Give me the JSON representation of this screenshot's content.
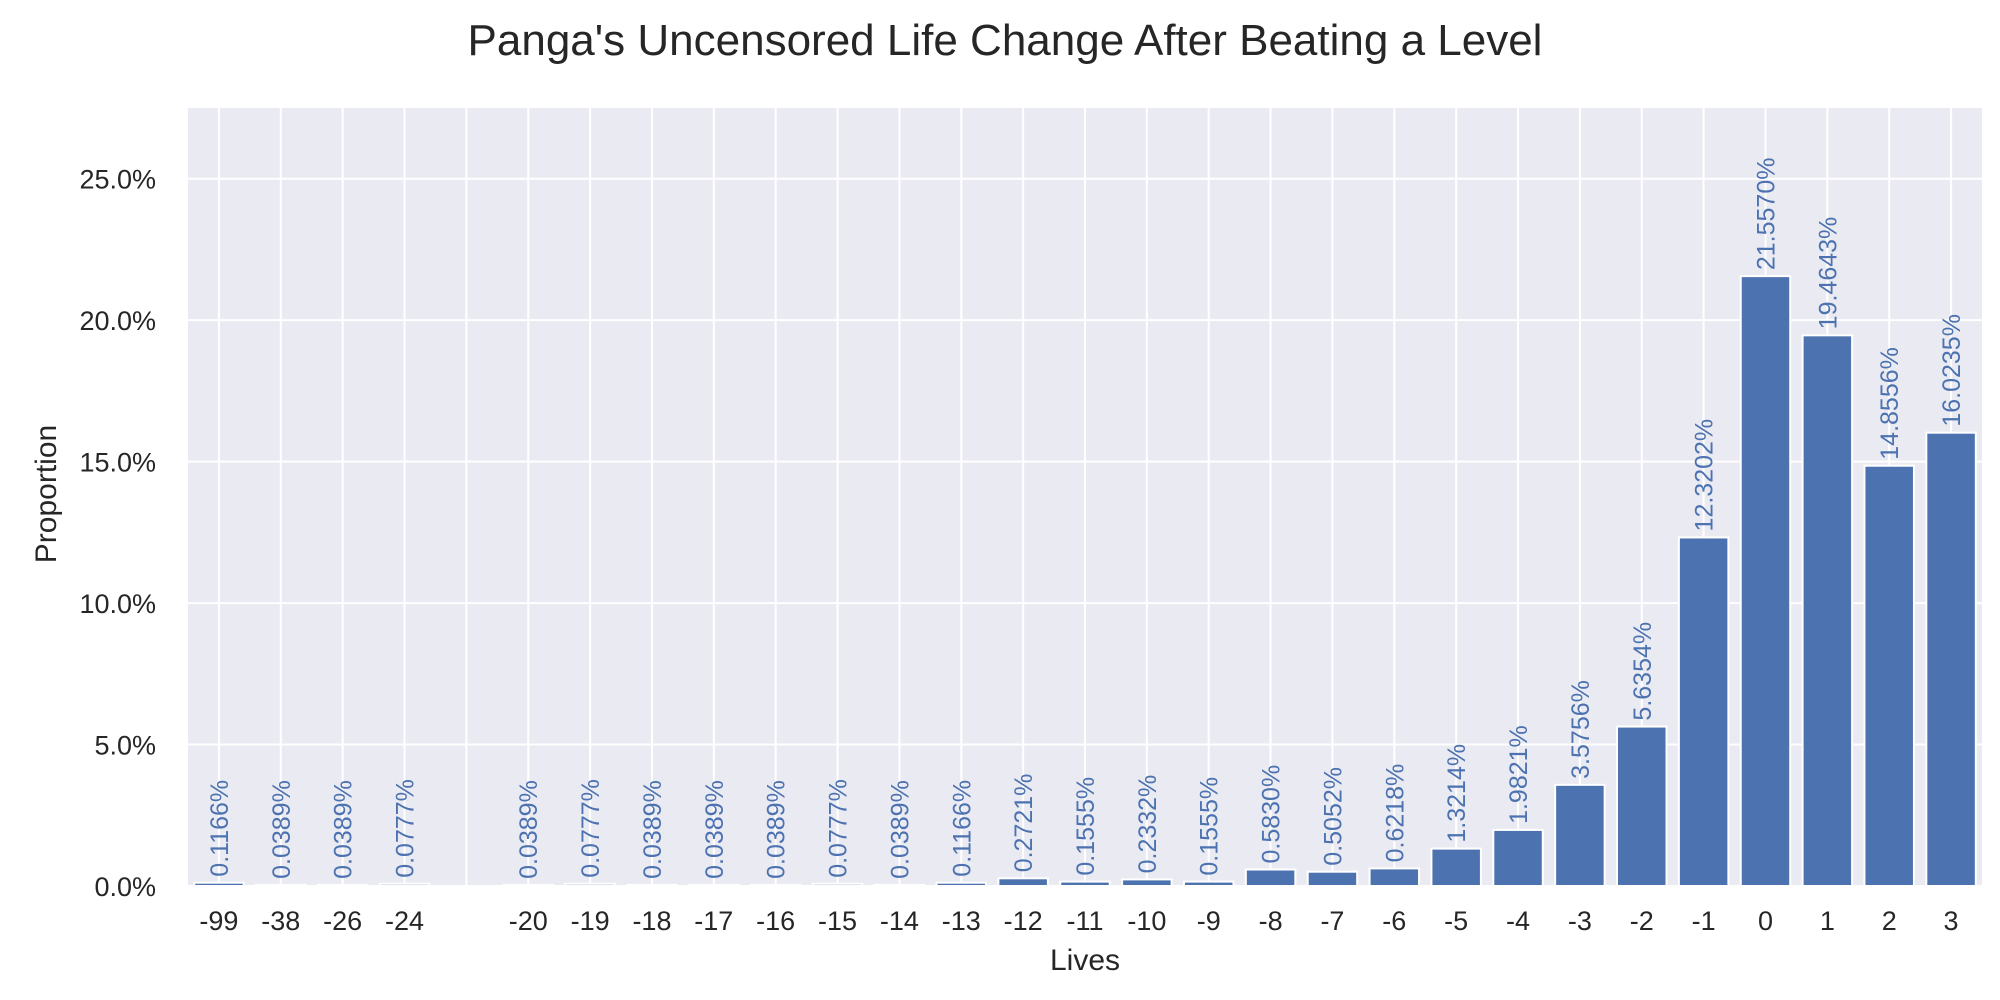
{
  "chart_data": {
    "type": "bar",
    "title": "Panga's Uncensored Life Change After Beating a Level",
    "xlabel": "Lives",
    "ylabel": "Proportion",
    "ylim": [
      0,
      27.5
    ],
    "yticks": [
      0,
      5,
      10,
      15,
      20,
      25
    ],
    "ytick_labels": [
      "0.0%",
      "5.0%",
      "10.0%",
      "15.0%",
      "20.0%",
      "25.0%"
    ],
    "grid": true,
    "colors": {
      "bar": "#4c72b0",
      "background": "#eaeaf2",
      "grid": "#ffffff",
      "text": "#262626"
    },
    "categories": [
      "-99",
      "-38",
      "-26",
      "-24",
      "",
      "-20",
      "-19",
      "-18",
      "-17",
      "-16",
      "-15",
      "-14",
      "-13",
      "-12",
      "-11",
      "-10",
      "-9",
      "-8",
      "-7",
      "-6",
      "-5",
      "-4",
      "-3",
      "-2",
      "-1",
      "0",
      "1",
      "2",
      "3"
    ],
    "values": [
      0.1166,
      0.0389,
      0.0389,
      0.0777,
      null,
      0.0389,
      0.0777,
      0.0389,
      0.0389,
      0.0389,
      0.0777,
      0.0389,
      0.1166,
      0.2721,
      0.1555,
      0.2332,
      0.1555,
      0.583,
      0.5052,
      0.6218,
      1.3214,
      1.9821,
      3.5756,
      5.6354,
      12.3202,
      21.557,
      19.4643,
      14.8556,
      16.0235
    ],
    "data_labels": [
      "0.1166%",
      "0.0389%",
      "0.0389%",
      "0.0777%",
      "",
      "0.0389%",
      "0.0777%",
      "0.0389%",
      "0.0389%",
      "0.0389%",
      "0.0777%",
      "0.0389%",
      "0.1166%",
      "0.2721%",
      "0.1555%",
      "0.2332%",
      "0.1555%",
      "0.5830%",
      "0.5052%",
      "0.6218%",
      "1.3214%",
      "1.9821%",
      "3.5756%",
      "5.6354%",
      "12.3202%",
      "21.5570%",
      "19.4643%",
      "14.8556%",
      "16.0235%"
    ]
  }
}
